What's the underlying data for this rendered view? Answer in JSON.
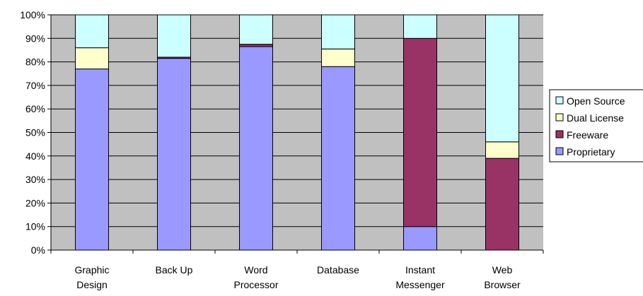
{
  "chart_data": {
    "type": "bar",
    "stacked": true,
    "percent": true,
    "categories": [
      [
        "Graphic",
        "Design"
      ],
      [
        "Back Up"
      ],
      [
        "Word",
        "Processor"
      ],
      [
        "Database"
      ],
      [
        "Instant",
        "Messenger"
      ],
      [
        "Web",
        "Browser"
      ]
    ],
    "series": [
      {
        "name": "Proprietary",
        "values": [
          77,
          81.5,
          86.5,
          78,
          10,
          0
        ]
      },
      {
        "name": "Freeware",
        "values": [
          0,
          0.5,
          1,
          0,
          80,
          39
        ]
      },
      {
        "name": "Dual License",
        "values": [
          9,
          0,
          0,
          7.5,
          0,
          7
        ]
      },
      {
        "name": "Open Source",
        "values": [
          14,
          18,
          12.5,
          14.5,
          10,
          54
        ]
      }
    ],
    "legend_order": [
      "Open Source",
      "Dual License",
      "Freeware",
      "Proprietary"
    ],
    "y_ticks": [
      "0%",
      "10%",
      "20%",
      "30%",
      "40%",
      "50%",
      "60%",
      "70%",
      "80%",
      "90%",
      "100%"
    ],
    "ylim": [
      0,
      100
    ],
    "grid": true,
    "legend_position": "right",
    "colors": {
      "Proprietary": "#9999ff",
      "Freeware": "#993366",
      "Dual License": "#ffffcc",
      "Open Source": "#ccffff",
      "plot_background": "#c0c0c0",
      "gridline": "#000000"
    }
  }
}
